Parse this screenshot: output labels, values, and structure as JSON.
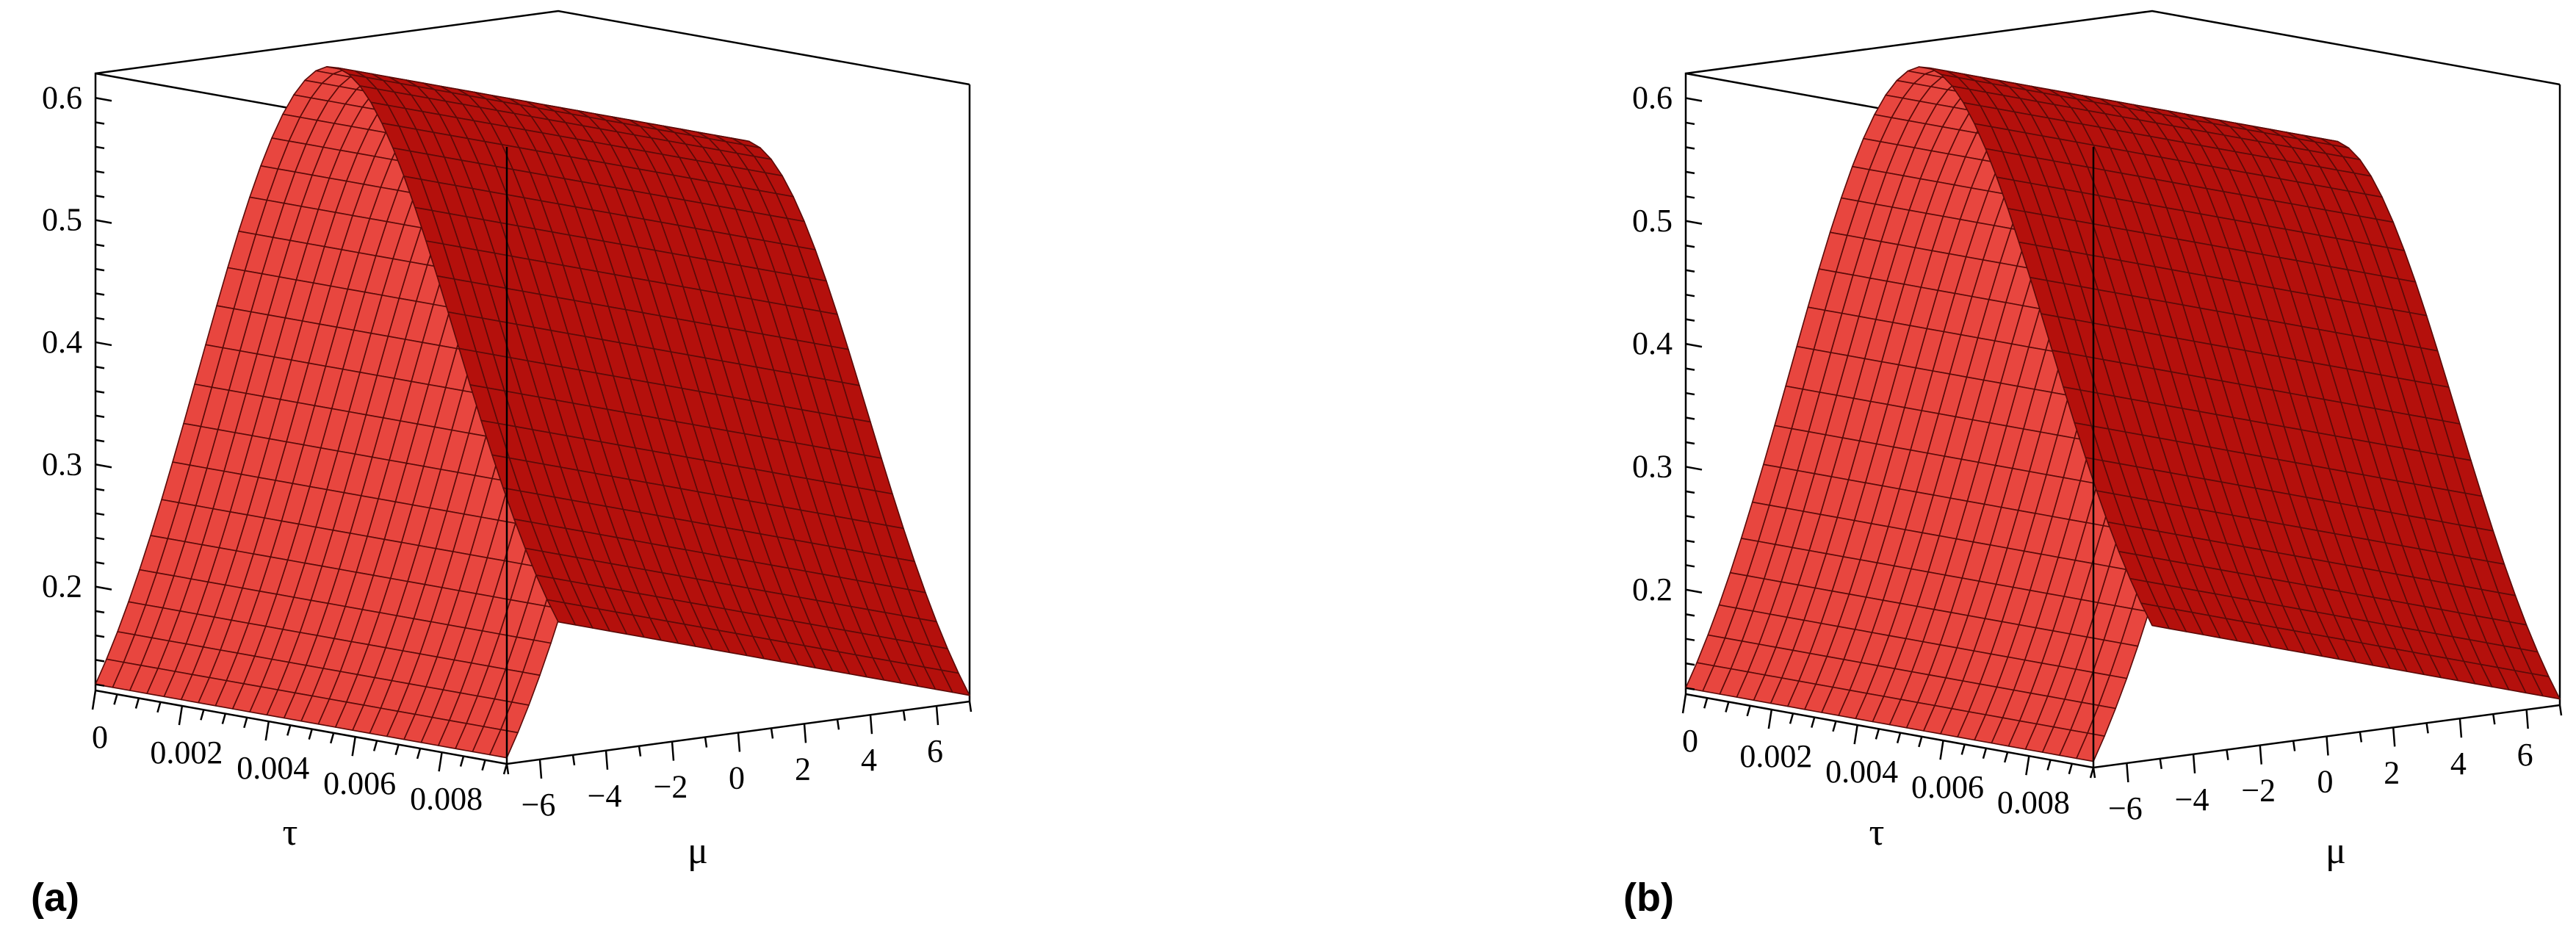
{
  "chart_data": [
    {
      "type": "surface",
      "panel_label": "(a)",
      "xlabel": "τ",
      "ylabel": "μ",
      "zlabel": "",
      "x_ticks": [
        "0",
        "0.002",
        "0.004",
        "0.006",
        "0.008"
      ],
      "x_range": [
        0,
        0.0095
      ],
      "y_ticks": [
        "6",
        "4",
        "2",
        "0",
        "−2",
        "−4",
        "−6"
      ],
      "y_range": [
        -7,
        7
      ],
      "z_ticks": [
        "0.2",
        "0.3",
        "0.4",
        "0.5",
        "0.6"
      ],
      "z_range": [
        0.115,
        0.62
      ],
      "surface": {
        "shape": "gaussian in μ, constant in τ",
        "peak": 0.6,
        "peak_at_mu": 0,
        "value_at_mu_edge": 0.12,
        "color": "#e8463f",
        "shade_color": "#b4100c",
        "mesh_color": "#5a0a08"
      }
    },
    {
      "type": "surface",
      "panel_label": "(b)",
      "xlabel": "τ",
      "ylabel": "μ",
      "zlabel": "",
      "x_ticks": [
        "0",
        "0.002",
        "0.004",
        "0.006",
        "0.008"
      ],
      "x_range": [
        0,
        0.0095
      ],
      "y_ticks": [
        "6",
        "4",
        "2",
        "0",
        "−2",
        "−4",
        "−6"
      ],
      "y_range": [
        -7,
        7
      ],
      "z_ticks": [
        "0.2",
        "0.3",
        "0.4",
        "0.5",
        "0.6"
      ],
      "z_range": [
        0.115,
        0.62
      ],
      "surface": {
        "shape": "gaussian in μ, constant in τ",
        "peak": 0.6,
        "peak_at_mu": 0,
        "value_at_mu_edge": 0.12,
        "color": "#e8463f",
        "shade_color": "#b4100c",
        "mesh_color": "#5a0a08"
      }
    }
  ]
}
